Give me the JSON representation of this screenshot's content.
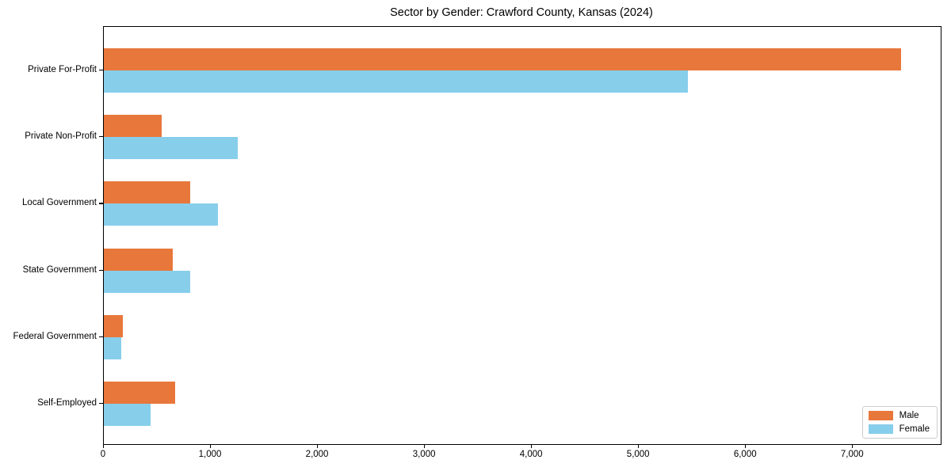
{
  "chart_data": {
    "type": "bar",
    "orientation": "horizontal",
    "title": "Sector by Gender: Crawford County, Kansas (2024)",
    "categories": [
      "Private For-Profit",
      "Private Non-Profit",
      "Local Government",
      "State Government",
      "Federal Government",
      "Self-Employed"
    ],
    "series": [
      {
        "name": "Male",
        "color": "#E8773B",
        "values": [
          7450,
          540,
          805,
          645,
          175,
          670
        ]
      },
      {
        "name": "Female",
        "color": "#87CEEB",
        "values": [
          5455,
          1255,
          1065,
          805,
          165,
          435
        ]
      }
    ],
    "xlim": [
      0,
      7820
    ],
    "xticks": [
      0,
      1000,
      2000,
      3000,
      4000,
      5000,
      6000,
      7000
    ],
    "xtick_labels": [
      "0",
      "1,000",
      "2,000",
      "3,000",
      "4,000",
      "5,000",
      "6,000",
      "7,000"
    ],
    "xlabel": "",
    "ylabel": "",
    "grid": false,
    "legend": {
      "position": "lower right",
      "entries": [
        "Male",
        "Female"
      ]
    },
    "background_color": "#ffffff",
    "spine_color": "#000000"
  }
}
